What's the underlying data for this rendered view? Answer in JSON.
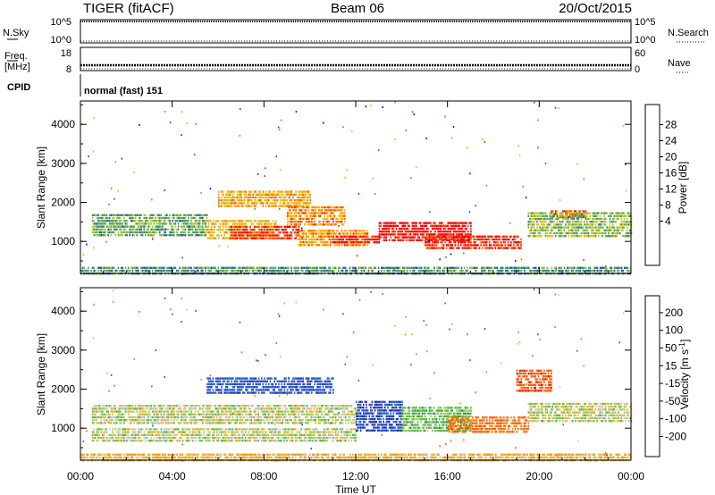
{
  "header": {
    "left": "TIGER (fitACF)",
    "center": "Beam 06",
    "right": "20/Oct/2015"
  },
  "params": {
    "nsky_label": "N.Sky",
    "nsky_ticks": [
      "10^5",
      "10^0"
    ],
    "nsearch_label": "N.Search",
    "nsearch_ticks": [
      "10^5",
      "10^0"
    ],
    "freq_label": "Freq.",
    "freq_unit": "[MHz]",
    "freq_ticks": [
      "18",
      "8"
    ],
    "nave_label": "Nave",
    "nave_ticks": [
      "60",
      "0"
    ],
    "cpid_label": "CPID",
    "cpid_value": "normal (fast) 151"
  },
  "chart_data": [
    {
      "type": "heatmap",
      "name": "power",
      "ylabel": "Slant Range [km]",
      "yticks": [
        "4000",
        "3000",
        "2000",
        "1000"
      ],
      "ylim": [
        180,
        4600
      ],
      "xlim": [
        "00:00",
        "24:00"
      ],
      "colorbar": {
        "label": "Power [dB]",
        "ticks": [
          "28",
          "24",
          "20",
          "16",
          "12",
          "8",
          "4"
        ],
        "colors": [
          "#0000ee",
          "#2255aa",
          "#3c8c64",
          "#66aa55",
          "#aacc33",
          "#f2c000",
          "#ffa500",
          "#ff6400",
          "#ff2a00",
          "#ee0000"
        ]
      },
      "regions": [
        {
          "t": [
            0.5,
            5.5
          ],
          "r": [
            1150,
            1700
          ],
          "value": 10
        },
        {
          "t": [
            5.5,
            8.5
          ],
          "r": [
            1100,
            1550
          ],
          "value": 17
        },
        {
          "t": [
            6.5,
            9.5
          ],
          "r": [
            1050,
            1400
          ],
          "value": 26
        },
        {
          "t": [
            9.5,
            12.5
          ],
          "r": [
            900,
            1300
          ],
          "value": 20
        },
        {
          "t": [
            11.0,
            13.0
          ],
          "r": [
            950,
            1150
          ],
          "value": 28
        },
        {
          "t": [
            13.0,
            17.0
          ],
          "r": [
            1050,
            1500
          ],
          "value": 29
        },
        {
          "t": [
            15.0,
            19.2
          ],
          "r": [
            850,
            1150
          ],
          "value": 27
        },
        {
          "t": [
            6.0,
            10.0
          ],
          "r": [
            1900,
            2300
          ],
          "value": 19
        },
        {
          "t": [
            9.0,
            11.5
          ],
          "r": [
            1400,
            1900
          ],
          "value": 21
        },
        {
          "t": [
            20.5,
            22.0
          ],
          "r": [
            1600,
            1800
          ],
          "value": 24
        },
        {
          "t": [
            19.5,
            24.0
          ],
          "r": [
            1150,
            1750
          ],
          "value": 12
        },
        {
          "t": [
            0.0,
            24.0
          ],
          "r": [
            200,
            350
          ],
          "value": 8
        }
      ]
    },
    {
      "type": "heatmap",
      "name": "velocity",
      "ylabel": "Slant Range [km]",
      "yticks": [
        "4000",
        "3000",
        "2000",
        "1000"
      ],
      "ylim": [
        180,
        4600
      ],
      "xlabel": "Time UT",
      "xticks": [
        "00:00",
        "04:00",
        "08:00",
        "12:00",
        "16:00",
        "20:00",
        "00:00"
      ],
      "xlim": [
        "00:00",
        "24:00"
      ],
      "colorbar": {
        "label": "Velocity [m s-1]",
        "ticks": [
          "200",
          "100",
          "50",
          "15",
          "-15",
          "-50",
          "-100",
          "-200"
        ],
        "colors": [
          "#1a2ea8",
          "#2a56c8",
          "#2f8a4a",
          "#5cb84a",
          "#9ad440",
          "#c8c8c0",
          "#f0b020",
          "#ff8c00",
          "#ff5a00",
          "#ee0000"
        ]
      },
      "regions": [
        {
          "t": [
            0.5,
            12.0
          ],
          "r": [
            1150,
            1600
          ],
          "value": 0
        },
        {
          "t": [
            0.5,
            12.0
          ],
          "r": [
            700,
            1000
          ],
          "value": 0
        },
        {
          "t": [
            5.5,
            11.0
          ],
          "r": [
            1900,
            2300
          ],
          "value": 180
        },
        {
          "t": [
            12.0,
            14.0
          ],
          "r": [
            950,
            1700
          ],
          "value": 200
        },
        {
          "t": [
            14.0,
            17.0
          ],
          "r": [
            950,
            1550
          ],
          "value": 30
        },
        {
          "t": [
            16.0,
            19.5
          ],
          "r": [
            900,
            1300
          ],
          "value": -110
        },
        {
          "t": [
            19.5,
            24.0
          ],
          "r": [
            1150,
            1650
          ],
          "value": 0
        },
        {
          "t": [
            19.0,
            20.5
          ],
          "r": [
            1950,
            2500
          ],
          "value": -180
        },
        {
          "t": [
            0.0,
            24.0
          ],
          "r": [
            200,
            350
          ],
          "value": -40
        }
      ]
    }
  ]
}
